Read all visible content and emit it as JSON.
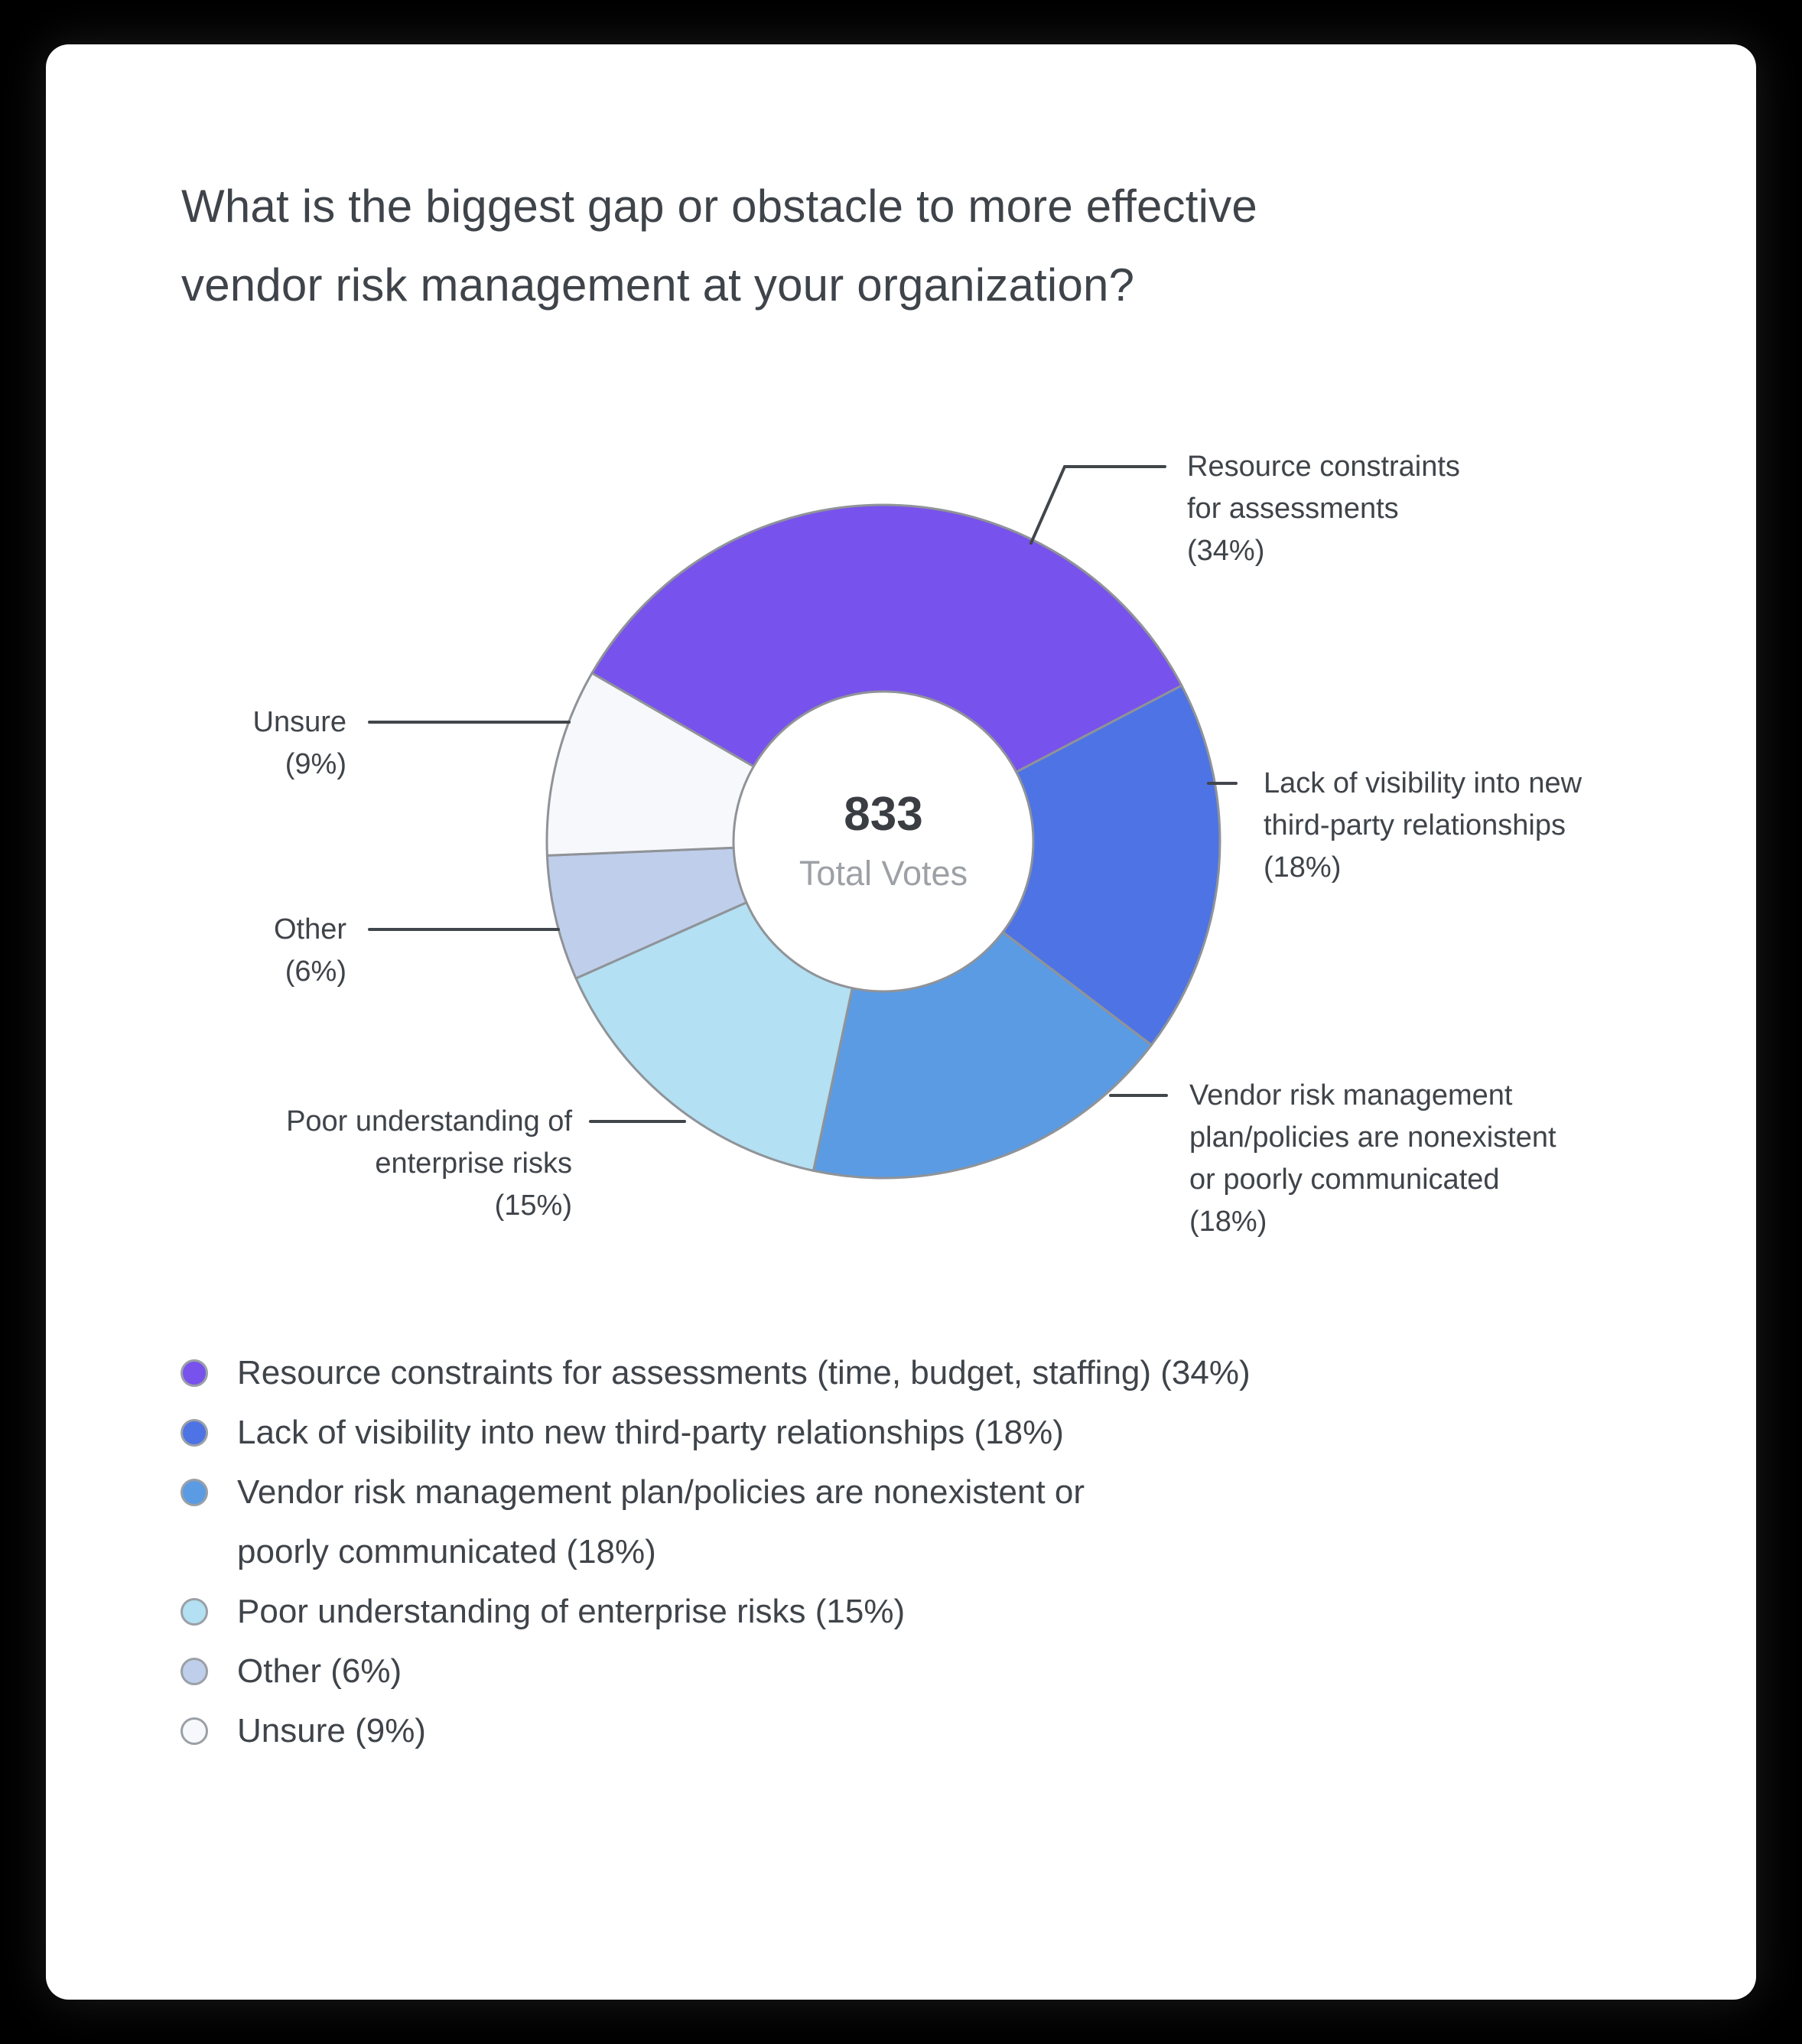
{
  "card": {
    "title_lines": [
      "What is the biggest gap or obstacle to more effective",
      "vendor risk management at your organization?"
    ]
  },
  "chart_data": {
    "type": "pie",
    "variant": "donut",
    "title": "What is the biggest gap or obstacle to more effective vendor risk management at your organization?",
    "center_value": "833",
    "center_label": "Total Votes",
    "total_votes": 833,
    "unit": "percent",
    "start_angle_deg_from_north": -60,
    "direction": "clockwise",
    "segment_stroke_color": "#8F9398",
    "callout_line_color": "#41464B",
    "legend_position": "bottom-left",
    "series": [
      {
        "label": "Resource constraints for assessments (time, budget, staffing)",
        "value": 34,
        "color": "#7852EC",
        "callout_lines": [
          "Resource constraints",
          "for assessments",
          "(34%)"
        ]
      },
      {
        "label": "Lack of visibility into new third-party relationships",
        "value": 18,
        "color": "#4D73E4",
        "callout_lines": [
          "Lack of visibility into new",
          "third-party relationships",
          "(18%)"
        ]
      },
      {
        "label": "Vendor risk management plan/policies are nonexistent or poorly communicated",
        "value": 18,
        "color": "#5B9BE4",
        "callout_lines": [
          "Vendor risk management",
          "plan/policies are nonexistent",
          "or poorly communicated",
          "(18%)"
        ]
      },
      {
        "label": "Poor understanding of enterprise risks",
        "value": 15,
        "color": "#B3E0F2",
        "callout_lines": [
          "Poor understanding of",
          "enterprise risks",
          "(15%)"
        ]
      },
      {
        "label": "Other",
        "value": 6,
        "color": "#BFCEEA",
        "callout_lines": [
          "Other",
          "(6%)"
        ]
      },
      {
        "label": "Unsure",
        "value": 9,
        "color": "#F7F8FB",
        "callout_lines": [
          "Unsure",
          "(9%)"
        ]
      }
    ]
  },
  "legend": {
    "items": [
      {
        "lines": [
          "Resource constraints for assessments (time, budget, staffing) (34%)"
        ],
        "color": "#7852EC"
      },
      {
        "lines": [
          "Lack of visibility into new third-party relationships (18%)"
        ],
        "color": "#4D73E4"
      },
      {
        "lines": [
          "Vendor risk management plan/policies are nonexistent or",
          "poorly communicated (18%)"
        ],
        "color": "#5B9BE4"
      },
      {
        "lines": [
          "Poor understanding of enterprise risks (15%)"
        ],
        "color": "#B3E0F2"
      },
      {
        "lines": [
          "Other (6%)"
        ],
        "color": "#BFCEEA"
      },
      {
        "lines": [
          "Unsure (9%)"
        ],
        "color": "#F7F8FB"
      }
    ]
  }
}
